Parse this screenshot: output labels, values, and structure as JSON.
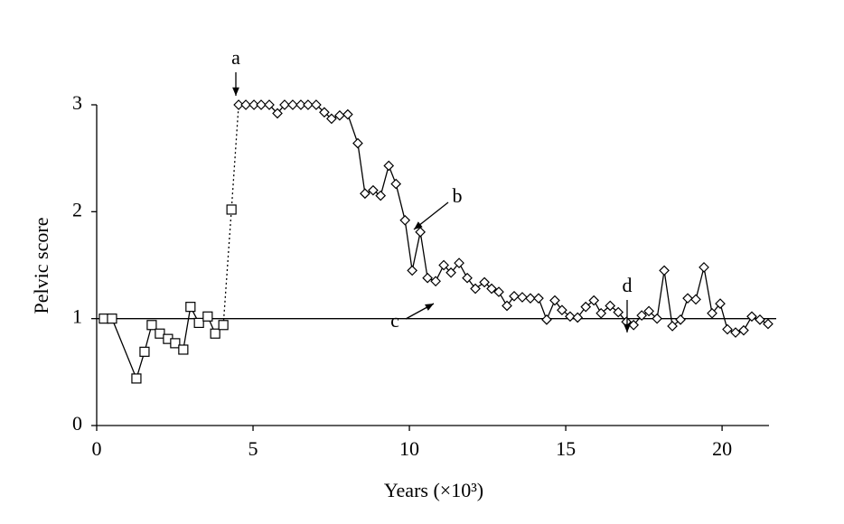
{
  "chart_data": {
    "type": "line",
    "xlabel": "Years (×10³)",
    "ylabel": "Pelvic score",
    "xlim": [
      0,
      21.5
    ],
    "xticks": [
      0,
      5,
      10,
      15,
      20
    ],
    "ylim": [
      0,
      3
    ],
    "yticks": [
      0,
      1,
      2,
      3
    ],
    "reference_line": 1,
    "annotations": [
      "a",
      "b",
      "c",
      "d"
    ],
    "series": [
      {
        "marker": "square",
        "color": "#000000",
        "x": [
          0.23,
          0.49,
          1.27,
          1.53,
          1.76,
          2.02,
          2.28,
          2.51,
          2.77,
          3.0,
          3.27,
          3.55,
          3.79,
          4.05,
          4.31
        ],
        "values": [
          1.0,
          1.0,
          0.44,
          0.69,
          0.94,
          0.86,
          0.81,
          0.77,
          0.71,
          1.11,
          0.96,
          1.02,
          0.86,
          0.94,
          2.02
        ]
      },
      {
        "marker": "diamond",
        "color": "#000000",
        "x": [
          4.54,
          4.77,
          5.03,
          5.26,
          5.52,
          5.78,
          6.01,
          6.27,
          6.53,
          6.76,
          7.02,
          7.28,
          7.51,
          7.77,
          8.03,
          8.35,
          8.58,
          8.84,
          9.08,
          9.34,
          9.57,
          9.86,
          10.09,
          10.35,
          10.58,
          10.84,
          11.1,
          11.33,
          11.59,
          11.85,
          12.11,
          12.4,
          12.63,
          12.86,
          13.12,
          13.35,
          13.61,
          13.87,
          14.13,
          14.39,
          14.65,
          14.88,
          15.14,
          15.38,
          15.64,
          15.9,
          16.13,
          16.42,
          16.68,
          16.94,
          17.17,
          17.43,
          17.66,
          17.92,
          18.15,
          18.41,
          18.67,
          18.9,
          19.16,
          19.42,
          19.68,
          19.94,
          20.17,
          20.43,
          20.69,
          20.95,
          21.21,
          21.47
        ],
        "values": [
          3.0,
          3.0,
          3.0,
          3.0,
          3.0,
          2.92,
          3.0,
          3.0,
          3.0,
          3.0,
          3.0,
          2.93,
          2.87,
          2.9,
          2.91,
          2.64,
          2.17,
          2.2,
          2.15,
          2.43,
          2.26,
          1.92,
          1.45,
          1.81,
          1.38,
          1.35,
          1.5,
          1.43,
          1.52,
          1.38,
          1.28,
          1.34,
          1.28,
          1.25,
          1.12,
          1.21,
          1.2,
          1.19,
          1.19,
          0.99,
          1.17,
          1.08,
          1.02,
          1.01,
          1.11,
          1.17,
          1.05,
          1.12,
          1.06,
          0.97,
          0.94,
          1.03,
          1.07,
          1.0,
          1.45,
          0.93,
          0.99,
          1.19,
          1.18,
          1.48,
          1.05,
          1.14,
          0.9,
          0.87,
          0.89,
          1.02,
          0.99,
          0.95
        ]
      }
    ]
  }
}
